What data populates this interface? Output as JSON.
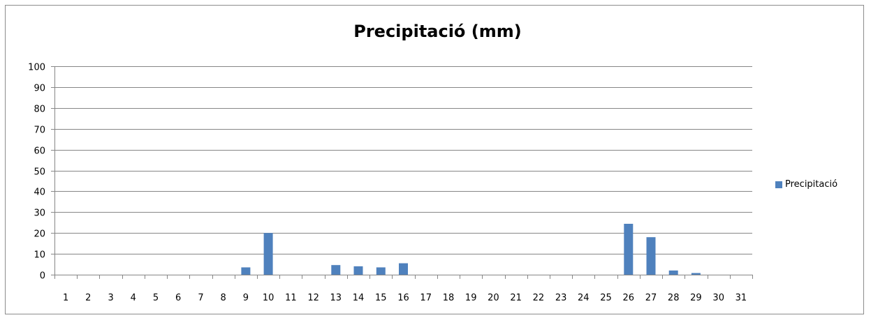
{
  "chart_data": {
    "type": "bar",
    "title": "Precipitació (mm)",
    "xlabel": "",
    "ylabel": "",
    "ylim": [
      0,
      100
    ],
    "yticks": [
      "0",
      "10",
      "20",
      "30",
      "40",
      "50",
      "60",
      "70",
      "80",
      "90",
      "100"
    ],
    "categories": [
      "1",
      "2",
      "3",
      "4",
      "5",
      "6",
      "7",
      "8",
      "9",
      "10",
      "11",
      "12",
      "13",
      "14",
      "15",
      "16",
      "17",
      "18",
      "19",
      "20",
      "21",
      "22",
      "23",
      "24",
      "25",
      "26",
      "27",
      "28",
      "29",
      "30",
      "31"
    ],
    "series": [
      {
        "name": "Precipitació",
        "color": "#4f81bd",
        "values": [
          0,
          0,
          0,
          0,
          0,
          0,
          0,
          0,
          3.5,
          20,
          0,
          0,
          4.6,
          4,
          3.5,
          5.5,
          0,
          0,
          0,
          0,
          0,
          0,
          0,
          0,
          0,
          24.4,
          18,
          2,
          0.8,
          0,
          0
        ]
      }
    ],
    "grid": true,
    "legend_position": "right"
  }
}
